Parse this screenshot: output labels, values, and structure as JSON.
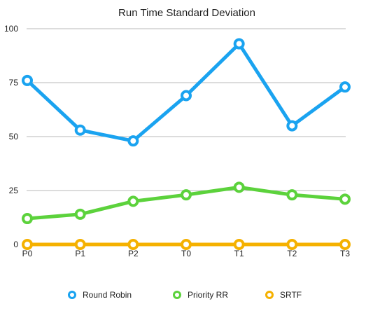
{
  "chart_data": {
    "type": "line",
    "title": "Run Time Standard Deviation",
    "xlabel": "",
    "ylabel": "",
    "categories": [
      "P0",
      "P1",
      "P2",
      "T0",
      "T1",
      "T2",
      "T3"
    ],
    "ylim": [
      0,
      100
    ],
    "yticks": [
      0,
      25,
      50,
      75,
      100
    ],
    "grid": true,
    "legend": "bottom",
    "series": [
      {
        "name": "Round Robin",
        "color": "#1aa3f0",
        "values": [
          76,
          53,
          48,
          69,
          93,
          55,
          73
        ]
      },
      {
        "name": "Priority RR",
        "color": "#5cd23c",
        "values": [
          12,
          14,
          20,
          23,
          26.5,
          23,
          21
        ]
      },
      {
        "name": "SRTF",
        "color": "#f5b100",
        "values": [
          0,
          0,
          0,
          0,
          0,
          0,
          0
        ]
      }
    ]
  }
}
